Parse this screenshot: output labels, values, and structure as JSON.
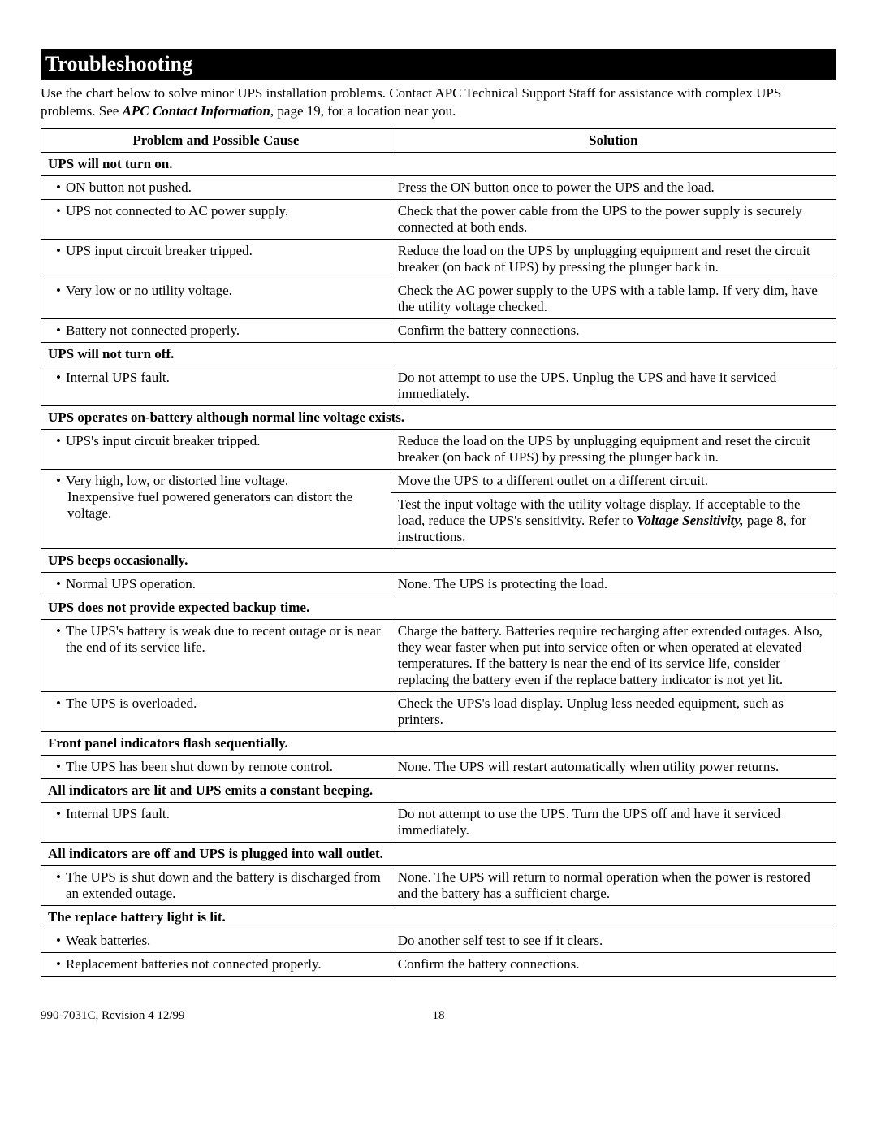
{
  "heading": "Troubleshooting",
  "intro_plain1": "Use the chart below to solve minor UPS installation problems.  Contact APC Technical Support Staff for assistance with complex UPS problems.  See ",
  "intro_bi": "APC Contact Information",
  "intro_plain2": ", page 19, for a location near you.",
  "col1": "Problem and Possible Cause",
  "col2": "Solution",
  "sections": [
    {
      "title": "UPS will not turn on.",
      "rows": [
        {
          "cause": "ON button not pushed.",
          "solution": "Press the ON button once to power the UPS and the load."
        },
        {
          "cause": "UPS not connected to AC power supply.",
          "solution": "Check that the power cable from the UPS to the power supply is securely connected at both ends."
        },
        {
          "cause": "UPS input circuit breaker tripped.",
          "solution": "Reduce the load on the UPS by unplugging equipment and reset the circuit breaker (on back of UPS) by pressing the plunger back in."
        },
        {
          "cause": "Very low or no utility voltage.",
          "solution": "Check the AC power supply to the UPS with a table lamp.  If very dim, have the utility voltage checked."
        },
        {
          "cause": "Battery not connected properly.",
          "solution": "Confirm the battery connections."
        }
      ]
    },
    {
      "title": "UPS will not turn off.",
      "rows": [
        {
          "cause": "Internal UPS fault.",
          "solution": "Do not attempt to use the UPS. Unplug the UPS and have it serviced immediately."
        }
      ]
    },
    {
      "title": "UPS operates on-battery although normal line voltage exists.",
      "rows": [
        {
          "cause": "UPS's input circuit breaker tripped.",
          "solution": "Reduce the load on the UPS by unplugging equipment and reset the circuit breaker (on back of UPS) by pressing the plunger back in."
        }
      ],
      "special": {
        "cause_bullet": "Very high, low, or distorted line voltage.",
        "cause_sub": "Inexpensive fuel powered generators can distort the voltage.",
        "sol1": "Move the UPS to a different outlet on a different circuit.",
        "sol2a": "Test the input voltage with the utility voltage display. If acceptable to the load, reduce the UPS's sensitivity.  Refer to ",
        "sol2b": "Voltage Sensitivity,",
        "sol2c": " page 8, for instructions."
      }
    },
    {
      "title": "UPS beeps occasionally.",
      "rows": [
        {
          "cause": "Normal UPS operation.",
          "solution": "None.  The UPS is protecting the load."
        }
      ]
    },
    {
      "title": "UPS does not provide expected backup time.",
      "rows": [
        {
          "cause": "The UPS's battery is weak due to recent outage or is near the end of its service life.",
          "solution": "Charge the battery. Batteries require recharging after extended outages.  Also, they wear faster when put into service often or when operated at elevated temperatures.  If the battery is near the end of its service life, consider replacing the battery even if the replace battery indicator is not yet lit."
        },
        {
          "cause": "The UPS is overloaded.",
          "solution": "Check the UPS's load display. Unplug less needed equipment, such as printers."
        }
      ]
    },
    {
      "title": "Front panel indicators flash sequentially.",
      "rows": [
        {
          "cause": "The UPS has been shut down by remote control.",
          "solution": "None.  The UPS will restart automatically when utility power returns."
        }
      ]
    },
    {
      "title": "All indicators are lit and UPS emits a constant beeping.",
      "rows": [
        {
          "cause": "Internal UPS fault.",
          "solution": "Do not attempt to use the UPS.  Turn the UPS off and have it serviced immediately."
        }
      ]
    },
    {
      "title": "All indicators are off and UPS is plugged into wall outlet.",
      "rows": [
        {
          "cause": "The UPS is shut down and the battery is discharged from an extended outage.",
          "solution": "None.  The UPS will return to normal operation when the power is restored and the battery has a sufficient charge."
        }
      ]
    },
    {
      "title": "The replace battery light is lit.",
      "rows": [
        {
          "cause": "Weak batteries.",
          "solution": "Do another self test to see if it clears."
        },
        {
          "cause": "Replacement batteries not connected properly.",
          "solution": "Confirm the battery connections."
        }
      ]
    }
  ],
  "footer_left": "990-7031C, Revision 4 12/99",
  "footer_page": "18"
}
